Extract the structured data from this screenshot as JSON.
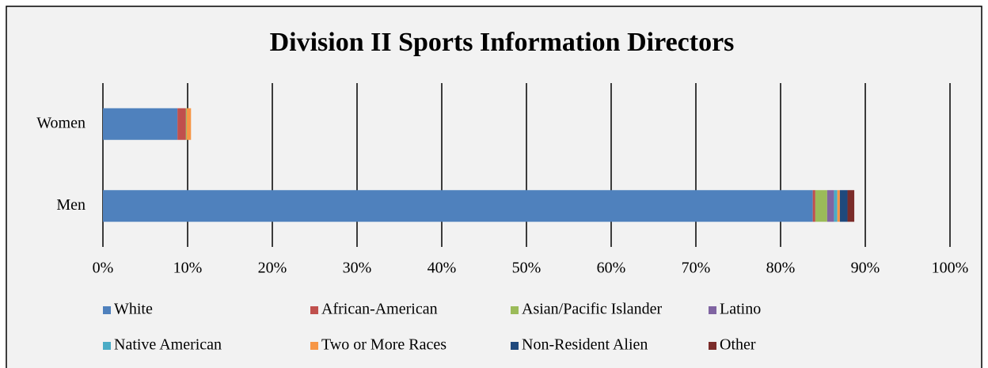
{
  "chart_data": {
    "type": "stacked-bar-horizontal",
    "title": "Division II Sports Information Directors",
    "categories": [
      "Women",
      "Men"
    ],
    "series": [
      {
        "name": "White",
        "color": "#4f81bd",
        "values": [
          8.8,
          83.8
        ]
      },
      {
        "name": "African-American",
        "color": "#c0504d",
        "values": [
          1.0,
          0.3
        ]
      },
      {
        "name": "Asian/Pacific Islander",
        "color": "#9bbb59",
        "values": [
          0.1,
          1.4
        ]
      },
      {
        "name": "Latino",
        "color": "#8064a2",
        "values": [
          0,
          0.8
        ]
      },
      {
        "name": "Native American",
        "color": "#4bacc6",
        "values": [
          0,
          0.4
        ]
      },
      {
        "name": "Two or More Races",
        "color": "#f79646",
        "values": [
          0.5,
          0.3
        ]
      },
      {
        "name": "Non-Resident Alien",
        "color": "#1f497d",
        "values": [
          0,
          0.9
        ]
      },
      {
        "name": "Other",
        "color": "#7b2c2a",
        "values": [
          0,
          0.8
        ]
      }
    ],
    "xlim": [
      0,
      100
    ],
    "xticks": [
      {
        "value": 0,
        "label": "0%"
      },
      {
        "value": 10,
        "label": "10%"
      },
      {
        "value": 20,
        "label": "20%"
      },
      {
        "value": 30,
        "label": "30%"
      },
      {
        "value": 40,
        "label": "40%"
      },
      {
        "value": 50,
        "label": "50%"
      },
      {
        "value": 60,
        "label": "60%"
      },
      {
        "value": 70,
        "label": "70%"
      },
      {
        "value": 80,
        "label": "80%"
      },
      {
        "value": 90,
        "label": "90%"
      },
      {
        "value": 100,
        "label": "100%"
      }
    ],
    "grid": true,
    "legend": "bottom"
  }
}
